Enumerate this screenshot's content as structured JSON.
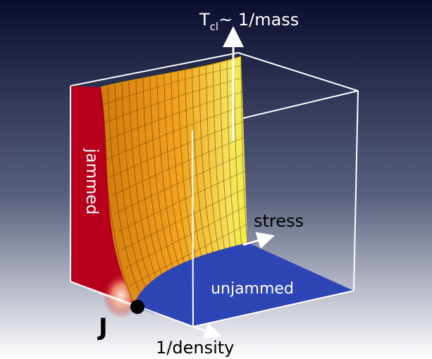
{
  "axes": {
    "vertical": {
      "symbol": "T",
      "subscript": "cl",
      "rest": "~ 1/mass"
    },
    "stress": "stress",
    "density": "1/density"
  },
  "regions": {
    "jammed": "jammed",
    "unjammed": "unjammed"
  },
  "point": {
    "label": "J"
  },
  "colors": {
    "background_top": "#0b0d2e",
    "background_mid": "#5a6180",
    "background_bottom": "#ffffff",
    "jammed_face": "#b8001d",
    "unjammed_floor": "#2e45b5",
    "surface_top": "#f5e35a",
    "surface_mid": "#f2a51f",
    "surface_edge": "#d17a0d",
    "surface_highlight": "#f2ee4a",
    "cube_edges": "#ffffff",
    "point_J": "#000000"
  }
}
